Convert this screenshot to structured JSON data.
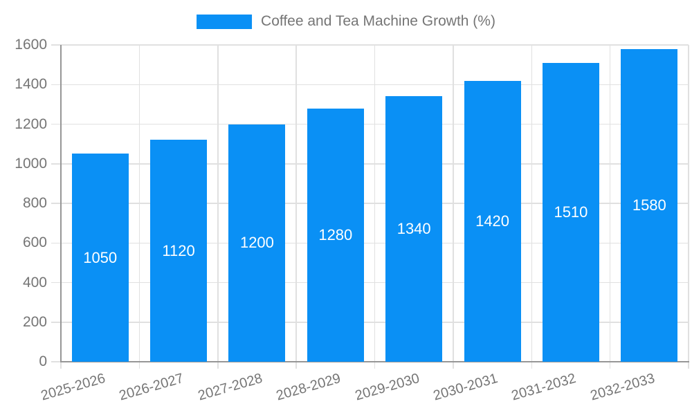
{
  "chart_data": {
    "type": "bar",
    "title": "Coffee and Tea Machine Growth (%)",
    "categories": [
      "2025-2026",
      "2026-2027",
      "2027-2028",
      "2028-2029",
      "2029-2030",
      "2030-2031",
      "2031-2032",
      "2032-2033"
    ],
    "values": [
      1050,
      1120,
      1200,
      1280,
      1340,
      1420,
      1510,
      1580
    ],
    "xlabel": "",
    "ylabel": "",
    "ylim": [
      0,
      1600
    ],
    "yticks": [
      0,
      200,
      400,
      600,
      800,
      1000,
      1200,
      1400,
      1600
    ],
    "grid": true,
    "legend_position": "top",
    "bar_labels_inside": true,
    "colors": {
      "bar": "#0A90F5",
      "bar_label": "#FFFFFF",
      "axis_text": "#757575",
      "grid_line": "#E0E0E0",
      "axis_line": "#969696",
      "background": "#FFFFFF"
    }
  }
}
